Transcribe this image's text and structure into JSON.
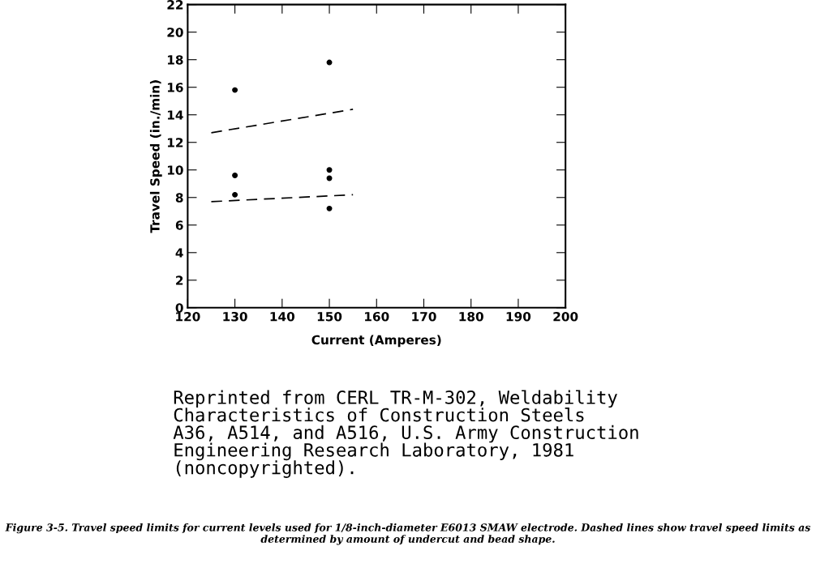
{
  "chart_data": {
    "type": "scatter",
    "xlabel": "Current (Amperes)",
    "ylabel": "Travel Speed (in./min)",
    "xlim": [
      120,
      200
    ],
    "xticks": [
      120,
      130,
      140,
      150,
      160,
      170,
      180,
      190,
      200
    ],
    "ylim": [
      0,
      22
    ],
    "yticks": [
      0,
      2,
      4,
      6,
      8,
      10,
      12,
      14,
      16,
      18,
      20,
      22
    ],
    "grid": false,
    "legend": false,
    "series": [
      {
        "color": "#000000",
        "marker": "circle",
        "x": [
          130,
          130,
          130,
          150,
          150,
          150,
          150
        ],
        "values": [
          15.8,
          9.6,
          8.2,
          17.8,
          10.0,
          9.4,
          7.2
        ]
      },
      {
        "type": "line",
        "color": "#000000",
        "line_style": "dashed",
        "marker": "none",
        "x": [
          125,
          155
        ],
        "values": [
          12.7,
          14.4
        ]
      },
      {
        "type": "line",
        "color": "#000000",
        "line_style": "dashed",
        "marker": "none",
        "x": [
          125,
          155
        ],
        "values": [
          7.7,
          8.2
        ]
      }
    ],
    "annotations": [
      "Reprinted from CERL TR-M-302, Weldability\nCharacteristics of Construction Steels\nA36, A514, and A516, U.S. Army Construction\nEngineering Research Laboratory, 1981\n(noncopyrighted).",
      "Figure 3-5. Travel speed limits for current levels used for 1/8-inch-diameter E6013 SMAW electrode. Dashed lines show travel speed limits as determined by amount of undercut and bead shape."
    ]
  }
}
